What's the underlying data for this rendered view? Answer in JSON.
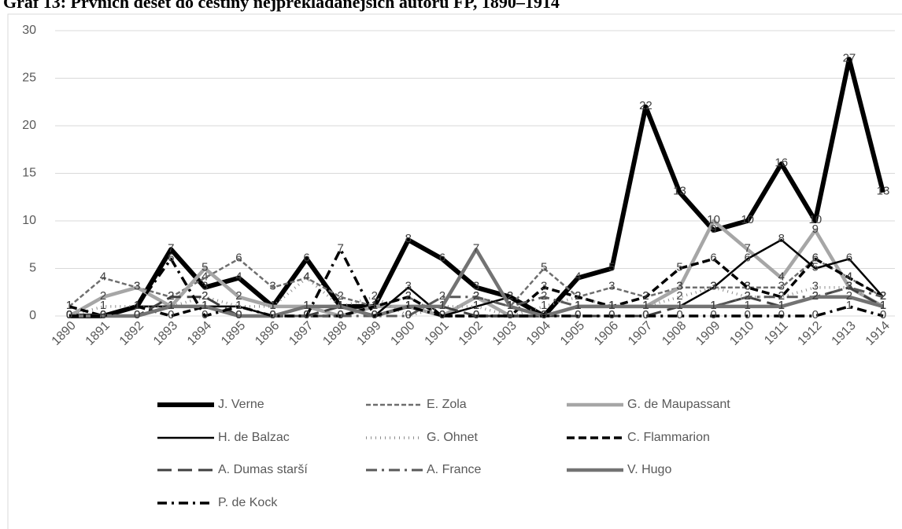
{
  "chart_data": {
    "type": "line",
    "title": "Graf 13: Prvních deset do češtiny nejpřekládanějších autorů FP, 1890–1914",
    "categories": [
      "1890",
      "1891",
      "1892",
      "1893",
      "1894",
      "1895",
      "1896",
      "1897",
      "1898",
      "1899",
      "1900",
      "1901",
      "1902",
      "1903",
      "1904",
      "1905",
      "1906",
      "1907",
      "1908",
      "1909",
      "1910",
      "1911",
      "1912",
      "1913",
      "1914"
    ],
    "ylim": [
      0,
      30
    ],
    "yticks": [
      0,
      5,
      10,
      15,
      20,
      25,
      30
    ],
    "grid": true,
    "series": [
      {
        "name": "J. Verne",
        "color": "#000000",
        "width": 6,
        "dash": "",
        "values": [
          0,
          0,
          1,
          7,
          3,
          4,
          1,
          6,
          1,
          1,
          8,
          6,
          3,
          2,
          0,
          4,
          5,
          22,
          13,
          9,
          10,
          16,
          10,
          27,
          13
        ]
      },
      {
        "name": "E. Zola",
        "color": "#6e6e6e",
        "width": 2.5,
        "dash": "6 3",
        "values": [
          1,
          4,
          3,
          2,
          4,
          6,
          3,
          4,
          2,
          1,
          2,
          0,
          2,
          1,
          5,
          2,
          3,
          2,
          3,
          3,
          3,
          3,
          6,
          4,
          2
        ]
      },
      {
        "name": "G. de Maupassant",
        "color": "#a6a6a6",
        "width": 4.5,
        "dash": "",
        "values": [
          0,
          2,
          3,
          1,
          5,
          2,
          1,
          1,
          0,
          1,
          1,
          0,
          2,
          0,
          0,
          1,
          1,
          1,
          3,
          10,
          7,
          4,
          9,
          3,
          1
        ]
      },
      {
        "name": "H. de Balzac",
        "color": "#000000",
        "width": 2.5,
        "dash": "",
        "values": [
          0,
          0,
          1,
          1,
          1,
          1,
          0,
          1,
          1,
          0,
          3,
          0,
          1,
          2,
          0,
          1,
          1,
          1,
          1,
          3,
          6,
          8,
          5,
          6,
          2
        ]
      },
      {
        "name": "G. Ohnet",
        "color": "#8c8c8c",
        "width": 3.5,
        "dash": "1 5",
        "values": [
          0,
          1,
          1,
          1,
          2,
          1,
          1,
          4,
          1,
          2,
          0,
          1,
          1,
          0,
          1,
          2,
          1,
          1,
          2,
          3,
          2,
          2,
          3,
          3,
          1
        ]
      },
      {
        "name": "C. Flammarion",
        "color": "#000000",
        "width": 3.5,
        "dash": "10 5",
        "values": [
          1,
          0,
          1,
          0,
          1,
          0,
          0,
          0,
          0,
          1,
          2,
          0,
          0,
          0,
          3,
          2,
          1,
          2,
          5,
          6,
          3,
          2,
          6,
          4,
          2
        ]
      },
      {
        "name": "A. Dumas starší",
        "color": "#404040",
        "width": 3,
        "dash": "18 8",
        "values": [
          0,
          0,
          0,
          2,
          2,
          0,
          0,
          0,
          1,
          0,
          1,
          1,
          0,
          0,
          0,
          0,
          0,
          0,
          1,
          1,
          2,
          1,
          2,
          3,
          1
        ]
      },
      {
        "name": "A. France",
        "color": "#595959",
        "width": 3,
        "dash": "14 6 3 6",
        "values": [
          0,
          0,
          0,
          1,
          1,
          0,
          0,
          0,
          0,
          0,
          0,
          2,
          2,
          1,
          2,
          1,
          1,
          1,
          1,
          1,
          2,
          2,
          2,
          3,
          2
        ]
      },
      {
        "name": "V. Hugo",
        "color": "#737373",
        "width": 4.5,
        "dash": "",
        "values": [
          0,
          0,
          0,
          1,
          1,
          0,
          0,
          1,
          1,
          0,
          1,
          1,
          7,
          1,
          0,
          1,
          1,
          1,
          1,
          1,
          1,
          1,
          2,
          2,
          1
        ]
      },
      {
        "name": "P. de Kock",
        "color": "#000000",
        "width": 3.5,
        "dash": "12 6 3 6",
        "values": [
          0,
          0,
          1,
          6,
          0,
          1,
          0,
          0,
          7,
          0,
          1,
          0,
          0,
          0,
          0,
          0,
          0,
          0,
          0,
          0,
          0,
          0,
          0,
          1,
          0
        ]
      }
    ]
  }
}
